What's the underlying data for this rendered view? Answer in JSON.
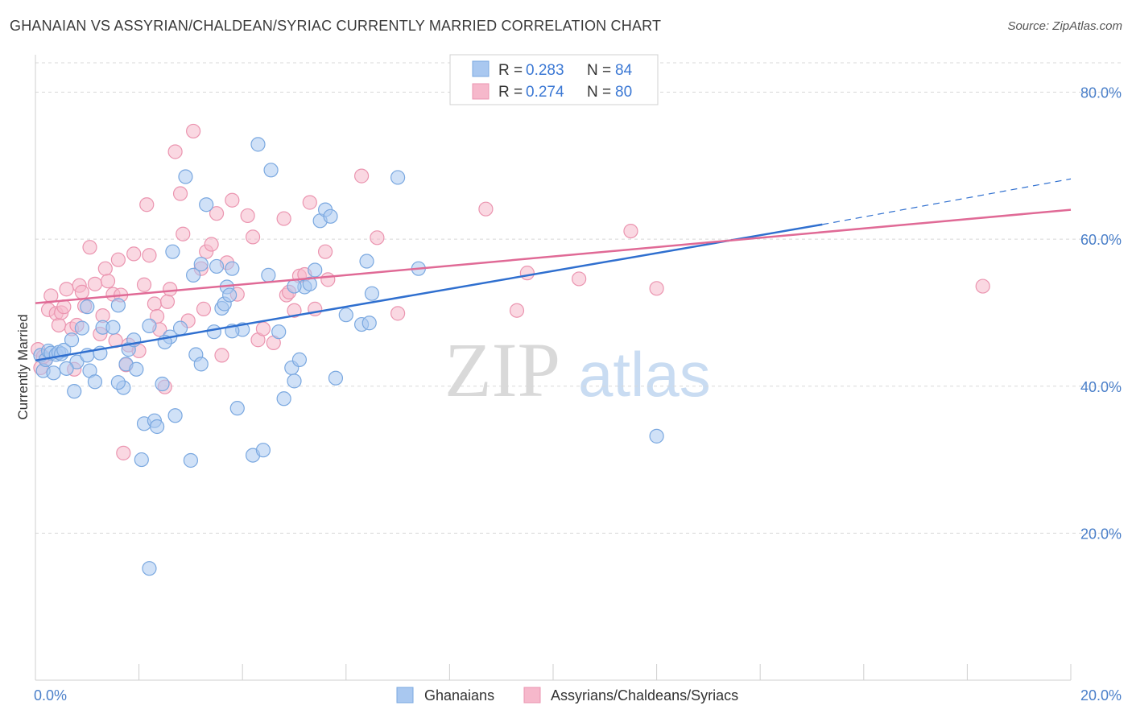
{
  "title": "GHANAIAN VS ASSYRIAN/CHALDEAN/SYRIAC CURRENTLY MARRIED CORRELATION CHART",
  "source": "Source: ZipAtlas.com",
  "watermark": {
    "zip": "ZIP",
    "atlas": "atlas"
  },
  "legend": {
    "rows": [
      {
        "r_label": "R =",
        "r_value": "0.283",
        "n_label": "N =",
        "n_value": "84"
      },
      {
        "r_label": "R =",
        "r_value": "0.274",
        "n_label": "N =",
        "n_value": "80"
      }
    ]
  },
  "bottom_legend": [
    "Ghanaians",
    "Assyrians/Chaldeans/Syriacs"
  ],
  "colors": {
    "blue_fill": "#a9c8f0",
    "blue_stroke": "#7aa8e0",
    "blue_line": "#2f6fcf",
    "pink_fill": "#f6b8cb",
    "pink_stroke": "#eb95b0",
    "pink_line": "#e06a96",
    "grid": "#d8d8d8",
    "tick_text": "#4a7fc9"
  },
  "chart_data": {
    "type": "scatter",
    "title": "GHANAIAN VS ASSYRIAN/CHALDEAN/SYRIAC CURRENTLY MARRIED CORRELATION CHART",
    "xlabel": "",
    "ylabel": "Currently Married",
    "xlim": [
      0,
      20
    ],
    "ylim": [
      0,
      84
    ],
    "x_ticks": [
      0,
      20
    ],
    "x_tick_labels": [
      "0.0%",
      "20.0%"
    ],
    "y_ticks": [
      20,
      40,
      60,
      80
    ],
    "y_tick_labels": [
      "20.0%",
      "40.0%",
      "60.0%",
      "80.0%"
    ],
    "grid": true,
    "legend_position": "top-center",
    "series": [
      {
        "name": "Ghanaians",
        "r": 0.283,
        "n": 84,
        "trend": {
          "x0": 0,
          "y0": 43.5,
          "x1": 15.2,
          "y1": 62.0,
          "dash_to_x": 20,
          "dash_to_y": 68.2
        },
        "points": [
          [
            0.1,
            44.2
          ],
          [
            0.15,
            42.1
          ],
          [
            0.2,
            43.6
          ],
          [
            0.25,
            44.8
          ],
          [
            0.3,
            44.5
          ],
          [
            0.35,
            41.8
          ],
          [
            0.4,
            44.3
          ],
          [
            0.45,
            44.6
          ],
          [
            0.5,
            44.4
          ],
          [
            0.55,
            44.9
          ],
          [
            0.7,
            46.3
          ],
          [
            0.75,
            39.3
          ],
          [
            0.8,
            43.3
          ],
          [
            0.9,
            47.9
          ],
          [
            1.0,
            44.2
          ],
          [
            1.05,
            42.1
          ],
          [
            1.15,
            40.6
          ],
          [
            1.25,
            44.5
          ],
          [
            1.3,
            48.0
          ],
          [
            1.5,
            48.0
          ],
          [
            1.6,
            51.0
          ],
          [
            1.7,
            39.8
          ],
          [
            1.75,
            43.0
          ],
          [
            1.8,
            45.0
          ],
          [
            1.9,
            46.3
          ],
          [
            1.95,
            42.3
          ],
          [
            2.05,
            30.0
          ],
          [
            2.1,
            34.9
          ],
          [
            2.2,
            48.2
          ],
          [
            2.3,
            35.3
          ],
          [
            2.35,
            34.5
          ],
          [
            2.45,
            40.3
          ],
          [
            2.6,
            46.7
          ],
          [
            2.65,
            58.3
          ],
          [
            2.7,
            36.0
          ],
          [
            2.8,
            47.9
          ],
          [
            2.9,
            68.5
          ],
          [
            3.0,
            29.9
          ],
          [
            3.05,
            55.1
          ],
          [
            3.1,
            44.3
          ],
          [
            3.2,
            43.0
          ],
          [
            3.3,
            64.7
          ],
          [
            3.45,
            47.4
          ],
          [
            3.5,
            56.3
          ],
          [
            3.6,
            50.6
          ],
          [
            3.65,
            51.2
          ],
          [
            3.7,
            53.5
          ],
          [
            3.75,
            52.4
          ],
          [
            3.8,
            56.0
          ],
          [
            3.9,
            37.0
          ],
          [
            4.0,
            47.7
          ],
          [
            4.2,
            30.6
          ],
          [
            4.4,
            31.3
          ],
          [
            4.5,
            55.1
          ],
          [
            4.55,
            69.4
          ],
          [
            4.7,
            47.4
          ],
          [
            4.8,
            38.3
          ],
          [
            4.95,
            42.5
          ],
          [
            5.0,
            40.7
          ],
          [
            5.1,
            43.6
          ],
          [
            5.2,
            53.5
          ],
          [
            5.3,
            53.9
          ],
          [
            5.4,
            55.8
          ],
          [
            5.5,
            62.5
          ],
          [
            5.6,
            64.0
          ],
          [
            5.7,
            63.1
          ],
          [
            5.8,
            41.1
          ],
          [
            6.0,
            49.7
          ],
          [
            6.3,
            48.4
          ],
          [
            6.4,
            57.0
          ],
          [
            6.45,
            48.6
          ],
          [
            6.5,
            52.6
          ],
          [
            7.0,
            68.4
          ],
          [
            7.4,
            56.0
          ],
          [
            1.6,
            40.5
          ],
          [
            2.2,
            15.2
          ],
          [
            12.0,
            33.2
          ],
          [
            4.3,
            72.9
          ],
          [
            3.8,
            47.5
          ],
          [
            2.5,
            46.0
          ],
          [
            1.0,
            50.8
          ],
          [
            0.6,
            42.4
          ],
          [
            3.2,
            56.6
          ],
          [
            5.0,
            53.6
          ]
        ]
      },
      {
        "name": "Assyrians/Chaldeans/Syriacs",
        "r": 0.274,
        "n": 80,
        "trend": {
          "x0": 0,
          "y0": 51.3,
          "x1": 20,
          "y1": 64.0
        },
        "points": [
          [
            0.05,
            45.0
          ],
          [
            0.1,
            42.5
          ],
          [
            0.2,
            43.6
          ],
          [
            0.25,
            50.4
          ],
          [
            0.3,
            52.3
          ],
          [
            0.4,
            49.9
          ],
          [
            0.45,
            48.3
          ],
          [
            0.5,
            50.0
          ],
          [
            0.55,
            50.8
          ],
          [
            0.6,
            53.2
          ],
          [
            0.7,
            47.8
          ],
          [
            0.75,
            42.3
          ],
          [
            0.8,
            48.3
          ],
          [
            0.85,
            53.7
          ],
          [
            0.9,
            52.8
          ],
          [
            0.95,
            50.9
          ],
          [
            1.05,
            58.9
          ],
          [
            1.15,
            53.9
          ],
          [
            1.25,
            47.1
          ],
          [
            1.3,
            49.6
          ],
          [
            1.35,
            56.0
          ],
          [
            1.4,
            54.3
          ],
          [
            1.5,
            52.5
          ],
          [
            1.55,
            46.2
          ],
          [
            1.6,
            57.2
          ],
          [
            1.65,
            52.4
          ],
          [
            1.7,
            30.9
          ],
          [
            1.75,
            42.9
          ],
          [
            1.8,
            45.6
          ],
          [
            1.9,
            58.0
          ],
          [
            2.0,
            44.8
          ],
          [
            2.1,
            53.8
          ],
          [
            2.15,
            64.7
          ],
          [
            2.2,
            57.8
          ],
          [
            2.3,
            51.2
          ],
          [
            2.35,
            49.5
          ],
          [
            2.4,
            47.7
          ],
          [
            2.5,
            39.9
          ],
          [
            2.55,
            51.5
          ],
          [
            2.6,
            53.2
          ],
          [
            2.7,
            71.9
          ],
          [
            2.8,
            66.2
          ],
          [
            2.85,
            60.7
          ],
          [
            2.95,
            48.9
          ],
          [
            3.05,
            74.7
          ],
          [
            3.2,
            56.0
          ],
          [
            3.25,
            50.5
          ],
          [
            3.3,
            58.3
          ],
          [
            3.4,
            59.3
          ],
          [
            3.5,
            63.5
          ],
          [
            3.6,
            44.2
          ],
          [
            3.7,
            56.8
          ],
          [
            3.8,
            65.3
          ],
          [
            3.9,
            52.5
          ],
          [
            4.1,
            63.2
          ],
          [
            4.2,
            60.3
          ],
          [
            4.3,
            46.3
          ],
          [
            4.4,
            47.8
          ],
          [
            4.6,
            45.9
          ],
          [
            4.8,
            62.8
          ],
          [
            4.85,
            52.4
          ],
          [
            4.9,
            52.8
          ],
          [
            5.0,
            50.3
          ],
          [
            5.1,
            55.0
          ],
          [
            5.2,
            55.2
          ],
          [
            5.3,
            65.0
          ],
          [
            5.4,
            50.5
          ],
          [
            5.6,
            58.3
          ],
          [
            5.65,
            54.5
          ],
          [
            6.3,
            68.6
          ],
          [
            6.6,
            60.2
          ],
          [
            7.0,
            49.9
          ],
          [
            8.7,
            64.1
          ],
          [
            9.3,
            50.3
          ],
          [
            9.5,
            55.4
          ],
          [
            10.5,
            54.6
          ],
          [
            11.5,
            61.1
          ],
          [
            12.0,
            53.3
          ],
          [
            18.3,
            53.6
          ],
          [
            0.15,
            44.0
          ]
        ]
      }
    ]
  }
}
